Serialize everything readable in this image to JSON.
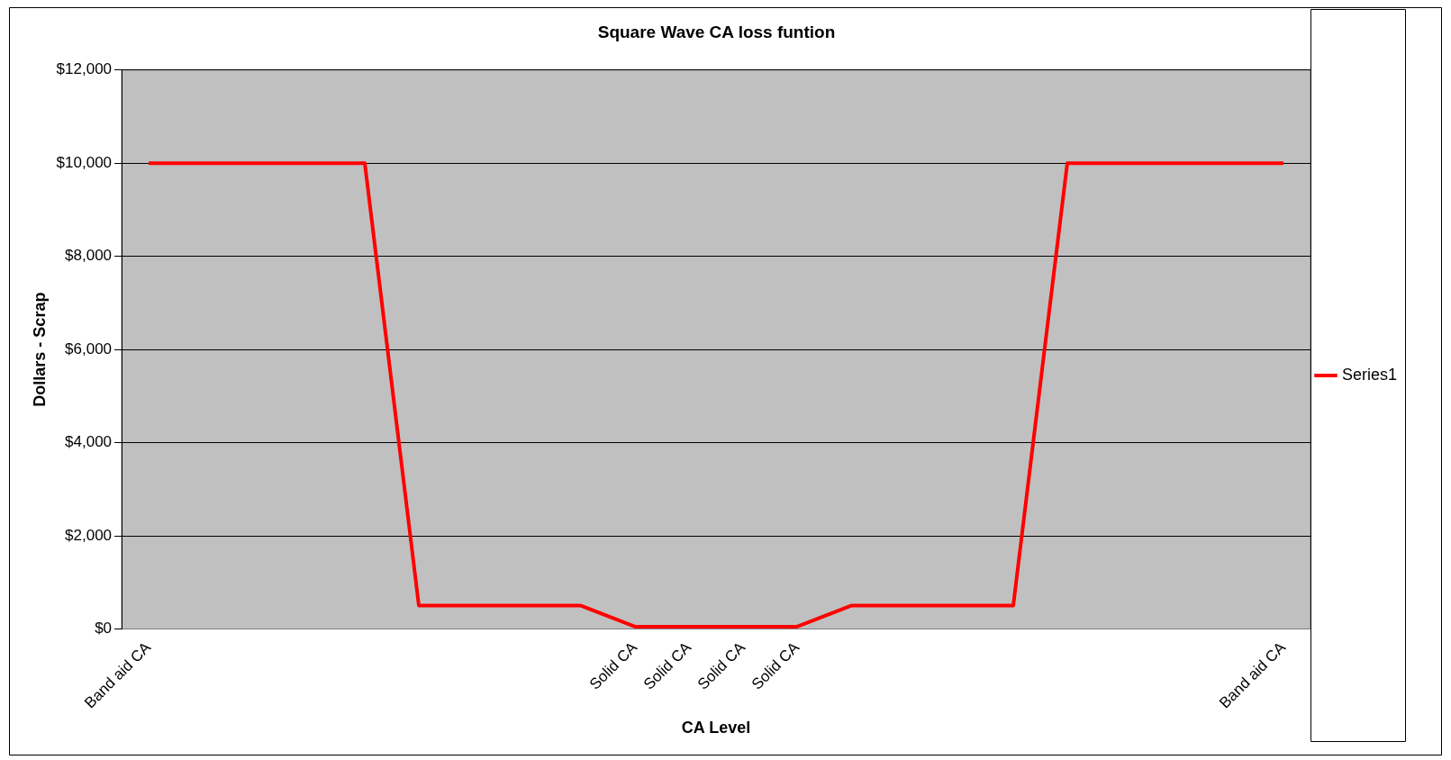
{
  "chart_data": {
    "type": "line",
    "title": "Square Wave CA loss funtion",
    "xlabel": "CA Level",
    "ylabel": "Dollars - Scrap",
    "categories": [
      "Band aid CA",
      null,
      null,
      null,
      null,
      null,
      null,
      null,
      null,
      "Solid CA",
      "Solid CA",
      "Solid CA",
      "Solid CA",
      null,
      null,
      null,
      null,
      null,
      null,
      null,
      null,
      "Band aid CA"
    ],
    "series": [
      {
        "name": "Series1",
        "color": "#ff0000",
        "values": [
          10000,
          10000,
          10000,
          10000,
          10000,
          500,
          500,
          500,
          500,
          50,
          50,
          50,
          50,
          500,
          500,
          500,
          500,
          10000,
          10000,
          10000,
          10000,
          10000
        ]
      }
    ],
    "ylim": [
      0,
      12000
    ],
    "yticks": [
      {
        "value": 0,
        "label": "$0"
      },
      {
        "value": 2000,
        "label": "$2,000"
      },
      {
        "value": 4000,
        "label": "$4,000"
      },
      {
        "value": 6000,
        "label": "$6,000"
      },
      {
        "value": 8000,
        "label": "$8,000"
      },
      {
        "value": 10000,
        "label": "$10,000"
      },
      {
        "value": 12000,
        "label": "$12,000"
      }
    ],
    "grid": "y",
    "legend": "right",
    "marker": "none"
  }
}
